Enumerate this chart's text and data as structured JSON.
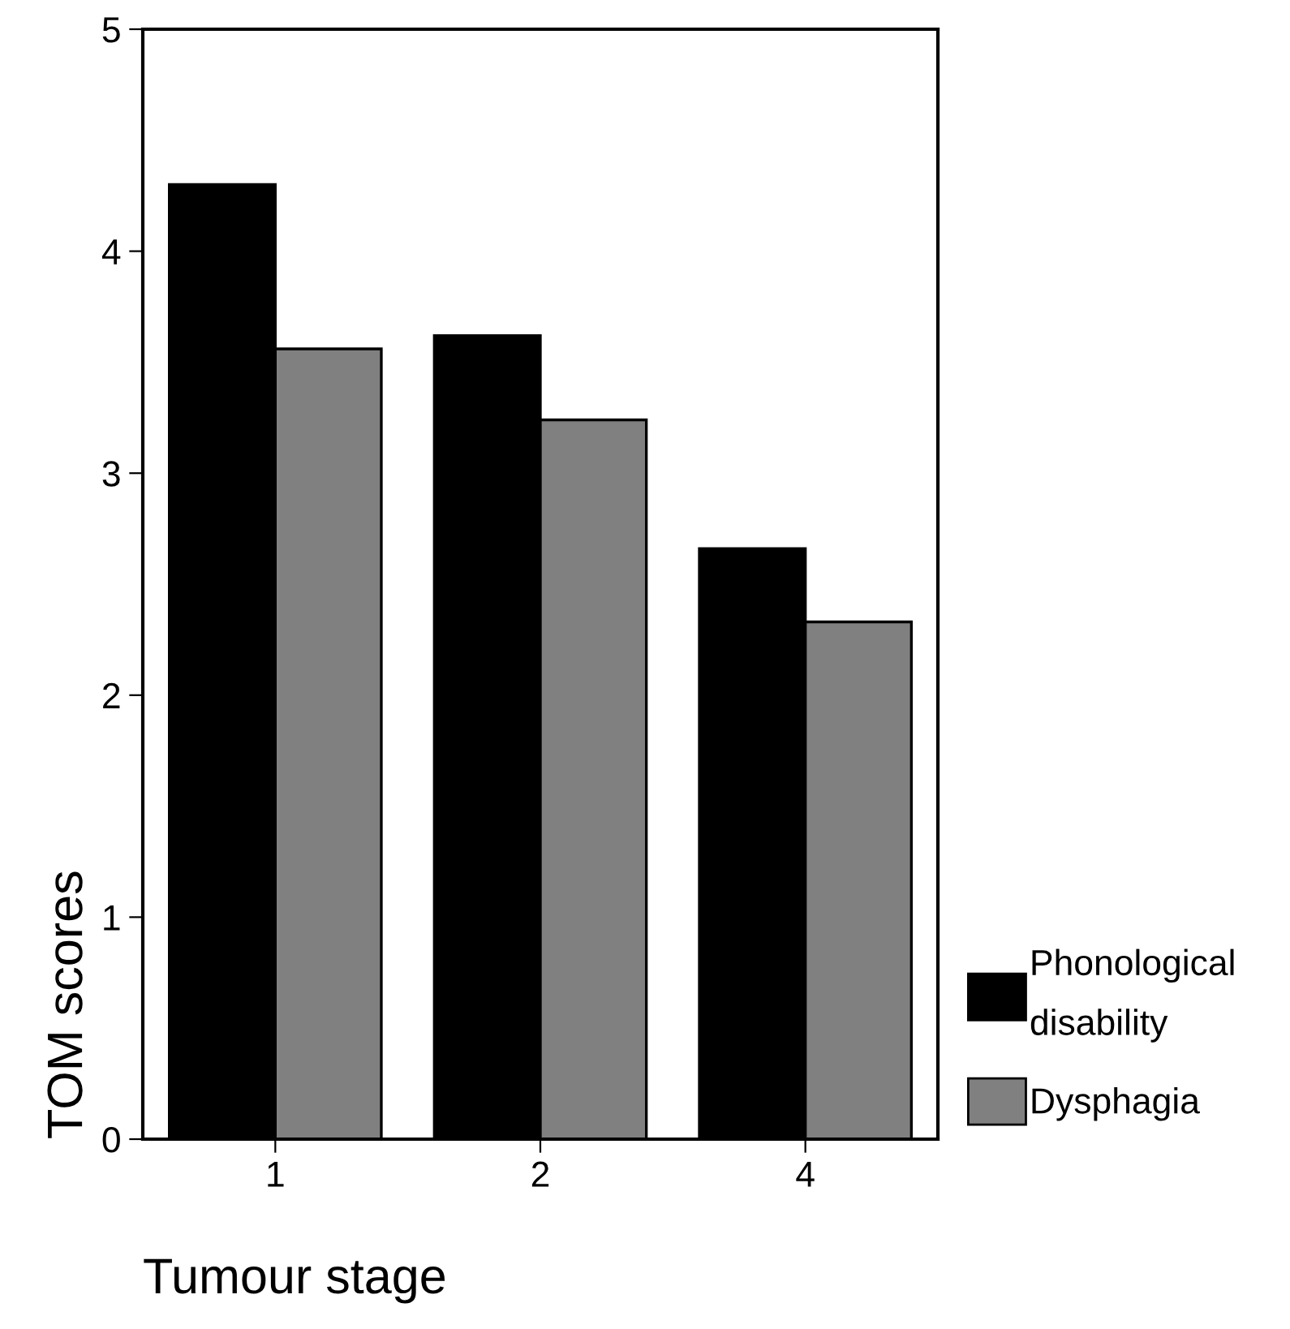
{
  "chart_data": {
    "type": "bar",
    "xlabel": "Tumour stage",
    "ylabel": "TOM scores",
    "categories": [
      "1",
      "2",
      "4"
    ],
    "series": [
      {
        "name": "Phonological disability",
        "color": "#000000",
        "values": [
          4.3,
          3.62,
          2.66
        ]
      },
      {
        "name": "Dysphagia",
        "color": "#808080",
        "values": [
          3.56,
          3.24,
          2.33
        ]
      }
    ],
    "ylim": [
      0,
      5
    ],
    "yticks": [
      0,
      1,
      2,
      3,
      4,
      5
    ],
    "grid": false,
    "legend": "right"
  }
}
